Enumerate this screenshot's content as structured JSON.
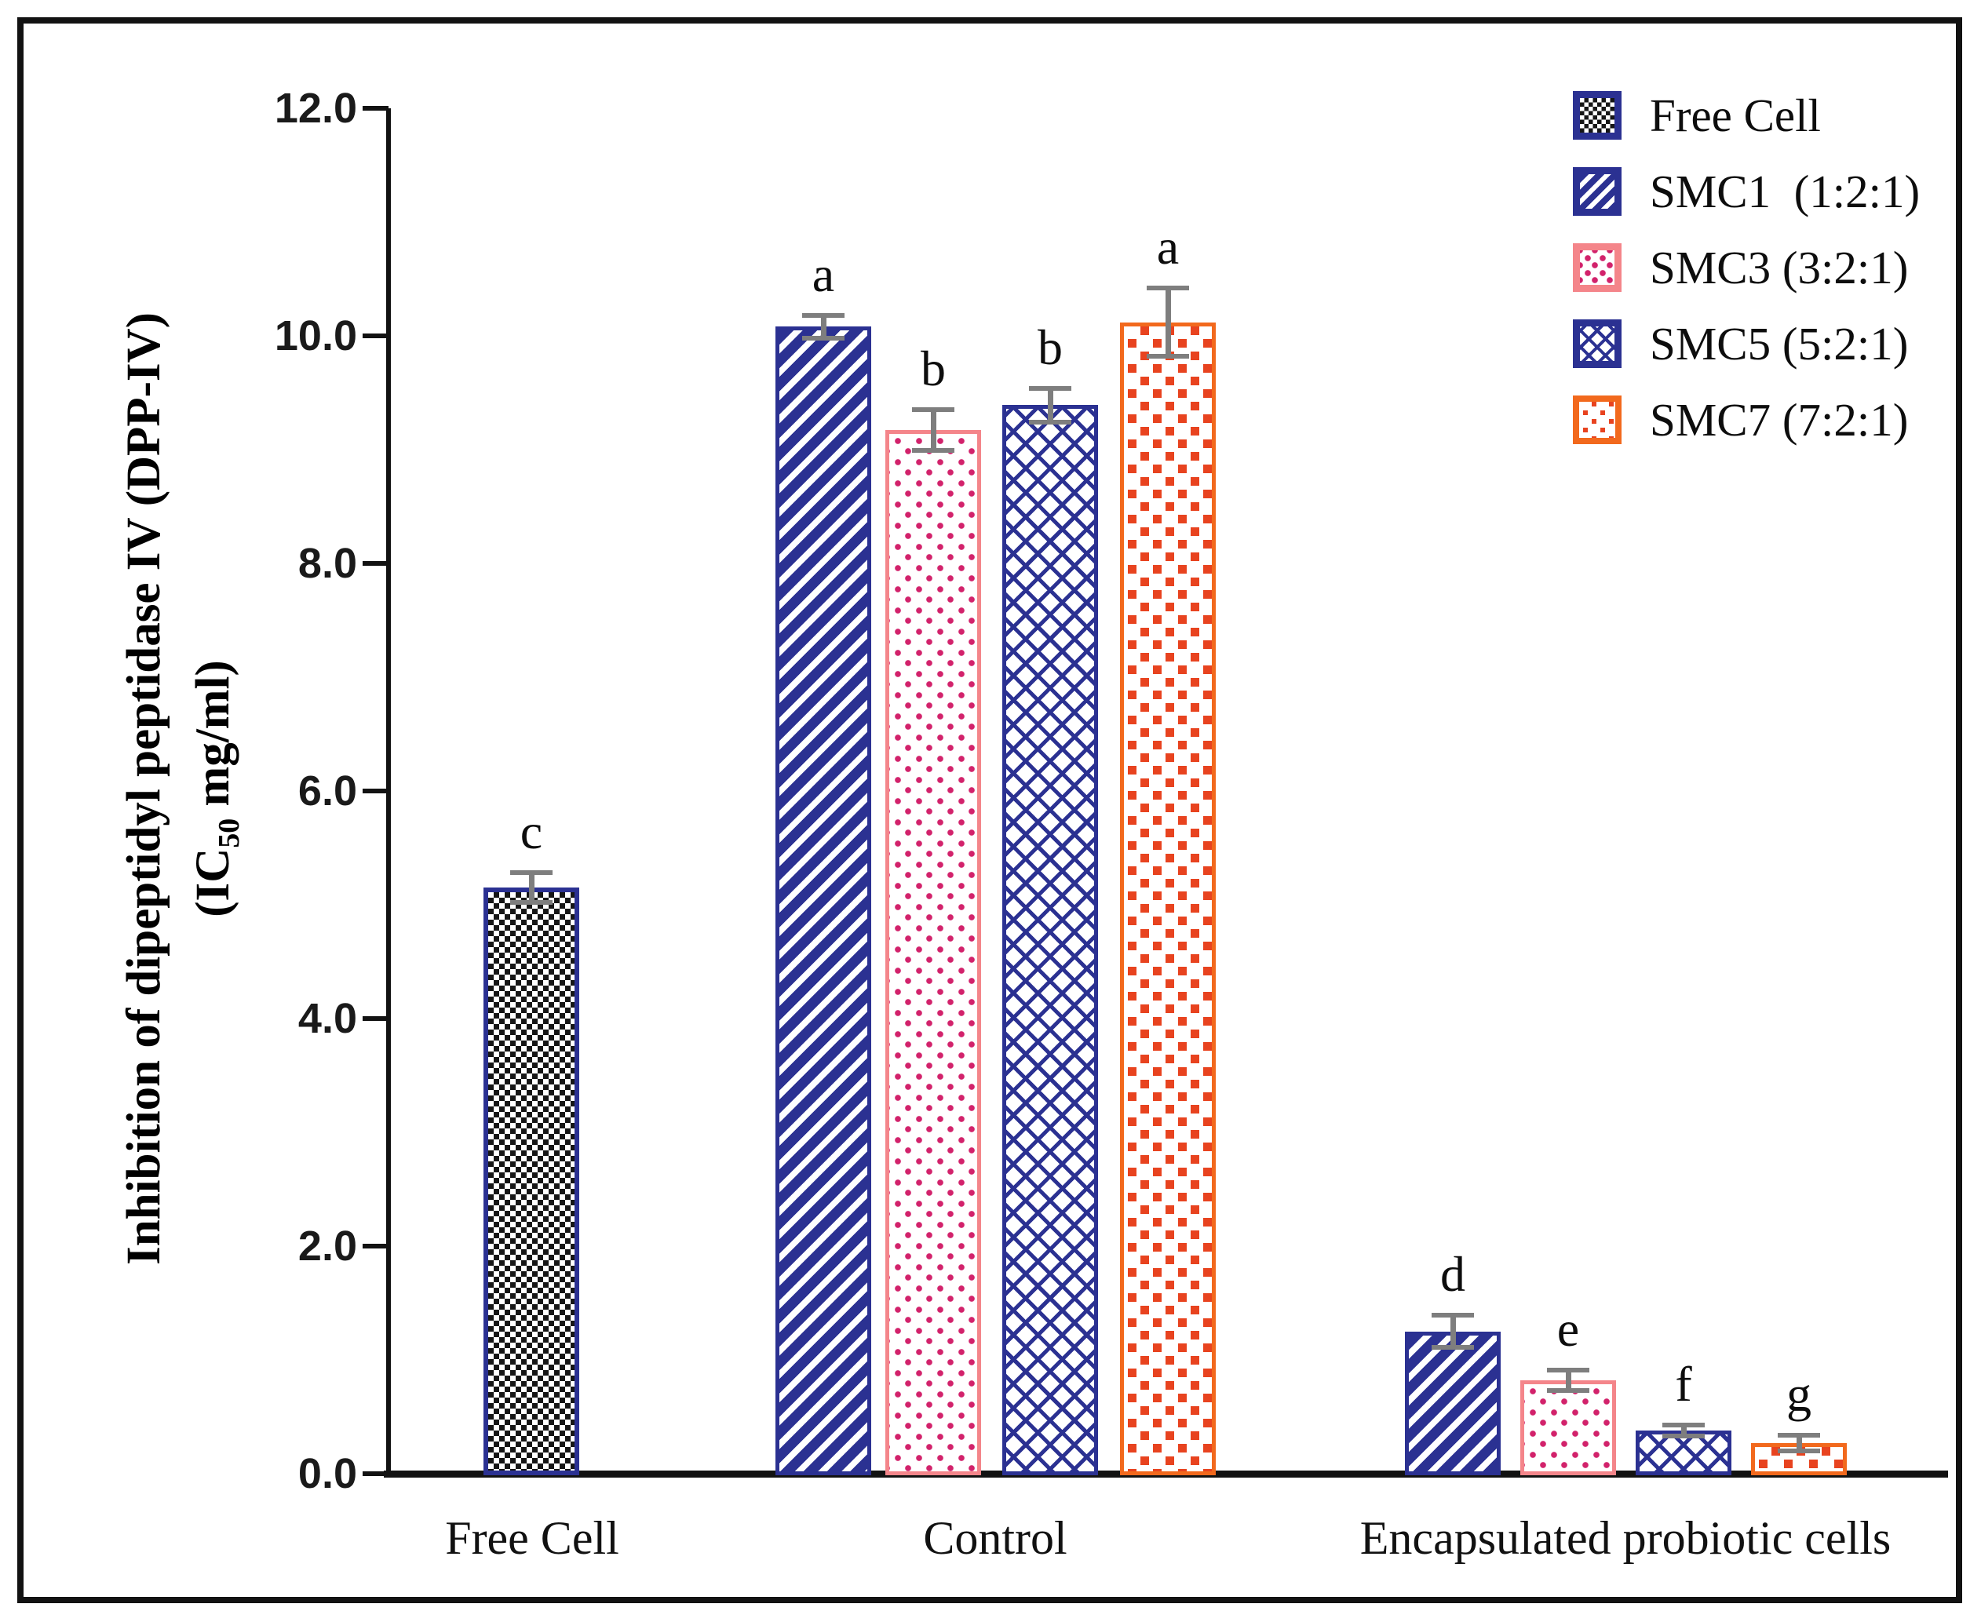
{
  "chart_data": {
    "type": "bar",
    "ylabel_line1": "Inhibition of dipeptidyl peptidase IV (DPP-IV)",
    "ylabel_line2_prefix": "(IC",
    "ylabel_line2_sub": "50",
    "ylabel_line2_suffix": " mg/ml)",
    "ylim": [
      0,
      12
    ],
    "ytick_step": 2,
    "ytick_labels": [
      "0.0",
      "2.0",
      "4.0",
      "6.0",
      "8.0",
      "10.0",
      "12.0"
    ],
    "grid": false,
    "legend_position": "top-right",
    "categories": [
      "Free Cell",
      "Control",
      "Encapsulated probiotic cells"
    ],
    "groups": [
      {
        "label": "Free Cell",
        "bars": [
          {
            "series": "Free Cell",
            "pattern": "checker",
            "value": 5.15,
            "error": 0.13,
            "letter": "c"
          }
        ]
      },
      {
        "label": "Control",
        "bars": [
          {
            "series": "SMC1 (1:2:1)",
            "pattern": "stripes",
            "value": 10.08,
            "error": 0.1,
            "letter": "a"
          },
          {
            "series": "SMC3 (3:2:1)",
            "pattern": "pink-dots",
            "value": 9.17,
            "error": 0.18,
            "letter": "b"
          },
          {
            "series": "SMC5 (5:2:1)",
            "pattern": "lattice",
            "value": 9.39,
            "error": 0.15,
            "letter": "b"
          },
          {
            "series": "SMC7 (7:2:1)",
            "pattern": "squares",
            "value": 10.12,
            "error": 0.3,
            "letter": "a"
          }
        ]
      },
      {
        "label": "Encapsulated probiotic cells",
        "bars": [
          {
            "series": "SMC1 (1:2:1)",
            "pattern": "stripes",
            "value": 1.25,
            "error": 0.14,
            "letter": "d"
          },
          {
            "series": "SMC3 (3:2:1)",
            "pattern": "pink-dots",
            "value": 0.82,
            "error": 0.09,
            "letter": "e"
          },
          {
            "series": "SMC5 (5:2:1)",
            "pattern": "lattice",
            "value": 0.38,
            "error": 0.05,
            "letter": "f"
          },
          {
            "series": "SMC7 (7:2:1)",
            "pattern": "squares",
            "value": 0.27,
            "error": 0.07,
            "letter": "g"
          }
        ]
      }
    ],
    "legend": [
      {
        "label": "Free Cell",
        "pattern": "checker"
      },
      {
        "label": "SMC1  (1:2:1)",
        "pattern": "stripes"
      },
      {
        "label": "SMC3 (3:2:1)",
        "pattern": "pink-dots"
      },
      {
        "label": "SMC5 (5:2:1)",
        "pattern": "lattice"
      },
      {
        "label": "SMC7 (7:2:1)",
        "pattern": "squares"
      }
    ],
    "colors": {
      "navy": "#2b3192",
      "magenta_dot": "#d2226b",
      "salmon_border": "#f4858a",
      "orange_border": "#f2691d",
      "red_square": "#e8431f",
      "checker_black": "#161616",
      "error_bar_gray": "#7e7e7e",
      "axis_black": "#121212"
    }
  }
}
